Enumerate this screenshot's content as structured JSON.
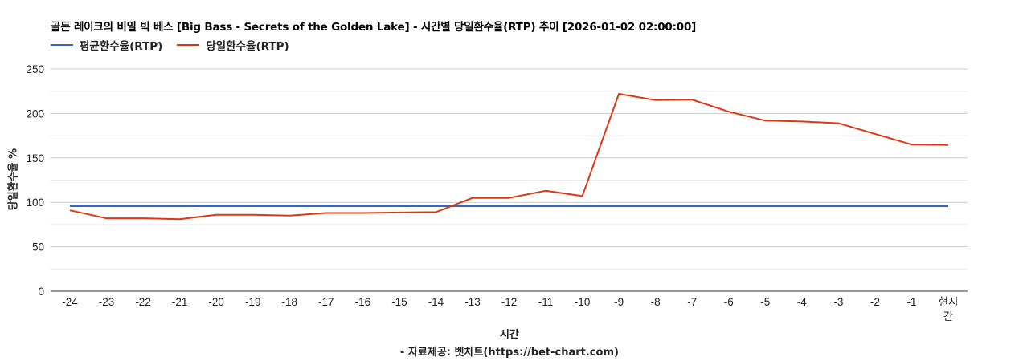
{
  "title": "골든 레이크의 비밀 빅 베스 [Big Bass - Secrets of the Golden Lake] - 시간별 당일환수율(RTP) 추이 [2026-01-02 02:00:00]",
  "legend": [
    {
      "label": "평균환수율(RTP)",
      "color": "#3366cc"
    },
    {
      "label": "당일환수율(RTP)",
      "color": "#dc3912"
    }
  ],
  "axis": {
    "ylabel": "당일환수율 %",
    "xlabel": "시간",
    "source": "- 자료제공: 벳차트(https://bet-chart.com)"
  },
  "chart_data": {
    "type": "line",
    "title": "골든 레이크의 비밀 빅 베스 [Big Bass - Secrets of the Golden Lake] - 시간별 당일환수율(RTP) 추이 [2026-01-02 02:00:00]",
    "xlabel": "시간",
    "ylabel": "당일환수율 %",
    "ylim": [
      0,
      250
    ],
    "yticks": [
      0,
      50,
      100,
      150,
      200,
      250
    ],
    "grid": true,
    "legend_position": "top",
    "categories": [
      "-24",
      "-23",
      "-22",
      "-21",
      "-20",
      "-19",
      "-18",
      "-17",
      "-16",
      "-15",
      "-14",
      "-13",
      "-12",
      "-11",
      "-10",
      "-9",
      "-8",
      "-7",
      "-6",
      "-5",
      "-4",
      "-3",
      "-2",
      "-1",
      "현시간"
    ],
    "series": [
      {
        "name": "평균환수율(RTP)",
        "color": "#3366cc",
        "values": [
          95.7,
          95.7,
          95.7,
          95.7,
          95.7,
          95.7,
          95.7,
          95.7,
          95.7,
          95.7,
          95.7,
          95.7,
          95.7,
          95.7,
          95.7,
          95.7,
          95.7,
          95.7,
          95.7,
          95.7,
          95.7,
          95.7,
          95.7,
          95.7,
          95.7
        ]
      },
      {
        "name": "당일환수율(RTP)",
        "color": "#dc3912",
        "values": [
          91,
          82,
          82,
          81,
          86,
          86,
          85,
          88,
          88,
          88.5,
          89,
          105,
          105,
          113,
          107,
          222,
          215,
          215.5,
          202,
          192,
          191,
          189,
          177,
          165,
          164.5
        ]
      }
    ]
  }
}
